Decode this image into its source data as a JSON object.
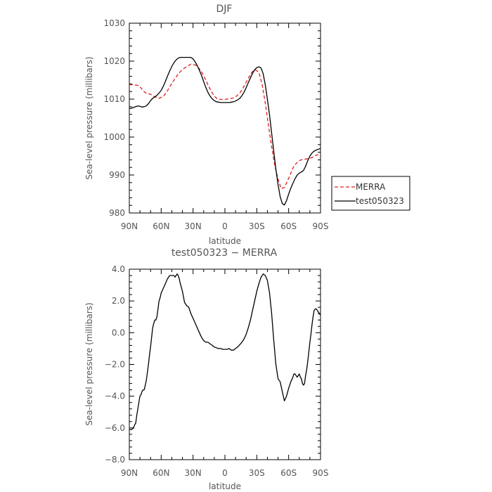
{
  "chart_data": [
    {
      "type": "line",
      "title": "DJF",
      "xlabel": "latitude",
      "ylabel": "Sea-level pressure (millibars)",
      "xlim": [
        90,
        -90
      ],
      "ylim": [
        980,
        1030
      ],
      "xticks": [
        90,
        60,
        30,
        0,
        -30,
        -60,
        -90
      ],
      "xtick_labels": [
        "90N",
        "60N",
        "30N",
        "0",
        "30S",
        "60S",
        "90S"
      ],
      "yticks": [
        980,
        990,
        1000,
        1010,
        1020,
        1030
      ],
      "ytick_labels": [
        "980",
        "990",
        "1000",
        "1010",
        "1020",
        "1030"
      ],
      "legend": {
        "placement": "right",
        "entries": [
          "MERRA",
          "test050323"
        ]
      },
      "series": [
        {
          "name": "MERRA",
          "color": "#e0201f",
          "dash": "dashed",
          "x": [
            90,
            86,
            84,
            82,
            80,
            77,
            74,
            70,
            66,
            62,
            58,
            55,
            52,
            48,
            44,
            40,
            36,
            32,
            28,
            25,
            22,
            19,
            16,
            13,
            10,
            7,
            4,
            1,
            -2,
            -5,
            -8,
            -11,
            -14,
            -17,
            -20,
            -23,
            -26,
            -29,
            -32,
            -35,
            -38,
            -41,
            -44,
            -47,
            -50,
            -53,
            -56,
            -59,
            -62,
            -64,
            -66,
            -68,
            -70,
            -72,
            -74,
            -76,
            -78,
            -80,
            -82,
            -84,
            -86,
            -88,
            -90
          ],
          "y": [
            1013.8,
            1013.8,
            1013.7,
            1013.6,
            1013.3,
            1012.2,
            1011.5,
            1011.3,
            1010.6,
            1010.2,
            1010.7,
            1011.8,
            1013.2,
            1015.0,
            1016.6,
            1017.8,
            1018.6,
            1019.2,
            1019.0,
            1018.3,
            1017.2,
            1015.6,
            1013.8,
            1012.1,
            1010.8,
            1010.0,
            1009.9,
            1009.9,
            1010.0,
            1010.1,
            1010.3,
            1010.8,
            1011.6,
            1012.9,
            1014.4,
            1016.0,
            1017.3,
            1017.7,
            1017.0,
            1013.9,
            1009.0,
            1003.0,
            997.5,
            992.5,
            988.9,
            986.4,
            986.7,
            988.5,
            990.4,
            991.8,
            992.7,
            993.3,
            993.8,
            994.0,
            994.1,
            994.2,
            994.3,
            994.4,
            994.6,
            995.0,
            995.2,
            995.4,
            995.5
          ]
        },
        {
          "name": "test050323",
          "color": "#000000",
          "dash": "solid",
          "x": [
            90,
            88,
            86,
            84,
            82,
            80,
            78,
            76,
            74,
            72,
            70,
            68,
            66,
            64,
            62,
            60,
            58,
            56,
            54,
            52,
            50,
            48,
            46,
            44,
            42,
            40,
            38,
            36,
            34,
            32,
            30,
            28,
            26,
            24,
            22,
            20,
            18,
            16,
            14,
            12,
            10,
            8,
            6,
            4,
            2,
            0,
            -2,
            -4,
            -6,
            -8,
            -10,
            -12,
            -14,
            -16,
            -18,
            -20,
            -22,
            -24,
            -26,
            -28,
            -30,
            -32,
            -34,
            -36,
            -38,
            -40,
            -42,
            -44,
            -46,
            -48,
            -50,
            -52,
            -54,
            -56,
            -58,
            -60,
            -62,
            -64,
            -66,
            -68,
            -70,
            -72,
            -74,
            -76,
            -78,
            -80,
            -82,
            -84,
            -86,
            -88,
            -90
          ],
          "y": [
            1007.5,
            1007.6,
            1007.8,
            1008.0,
            1008.2,
            1008.1,
            1007.9,
            1008.0,
            1008.2,
            1008.8,
            1009.6,
            1010.2,
            1010.6,
            1011.0,
            1011.6,
            1012.3,
            1013.4,
            1014.7,
            1016.1,
            1017.4,
            1018.6,
            1019.6,
            1020.3,
            1020.8,
            1021.0,
            1021.0,
            1021.0,
            1021.0,
            1021.0,
            1021.0,
            1020.6,
            1019.8,
            1018.8,
            1017.6,
            1016.2,
            1014.6,
            1013.1,
            1011.8,
            1010.8,
            1010.1,
            1009.6,
            1009.3,
            1009.2,
            1009.1,
            1009.1,
            1009.1,
            1009.1,
            1009.1,
            1009.2,
            1009.3,
            1009.5,
            1009.8,
            1010.2,
            1010.9,
            1011.8,
            1013.0,
            1014.3,
            1015.6,
            1016.8,
            1017.7,
            1018.3,
            1018.5,
            1018.2,
            1016.7,
            1013.8,
            1010.0,
            1005.8,
            1001.0,
            996.2,
            991.5,
            987.5,
            984.3,
            982.5,
            982.1,
            983.2,
            985.0,
            986.5,
            987.8,
            989.0,
            990.0,
            990.5,
            990.8,
            991.2,
            992.3,
            993.8,
            995.0,
            995.8,
            996.3,
            996.6,
            996.8,
            997.0
          ]
        }
      ]
    },
    {
      "type": "line",
      "title": "test050323 − MERRA",
      "xlabel": "latitude",
      "ylabel": "Sea-level pressure (millibars)",
      "xlim": [
        90,
        -90
      ],
      "ylim": [
        -8.0,
        4.0
      ],
      "xticks": [
        90,
        60,
        30,
        0,
        -30,
        -60,
        -90
      ],
      "xtick_labels": [
        "90N",
        "60N",
        "30N",
        "0",
        "30S",
        "60S",
        "90S"
      ],
      "yticks": [
        -8.0,
        -6.0,
        -4.0,
        -2.0,
        0.0,
        2.0,
        4.0
      ],
      "ytick_labels": [
        "−8.0",
        "−6.0",
        "−4.0",
        "−2.0",
        "0.0",
        "2.0",
        "4.0"
      ],
      "series": [
        {
          "color": "#000000",
          "dash": "solid",
          "x": [
            90,
            88,
            86,
            85,
            84,
            83,
            82,
            81,
            80,
            79,
            78,
            77,
            76,
            75,
            74,
            73,
            72,
            71,
            70,
            69,
            68,
            67,
            66,
            65,
            64,
            63,
            62,
            61,
            60,
            58,
            56,
            54,
            52,
            50,
            48,
            47,
            46,
            45,
            44,
            43,
            42,
            40,
            38,
            36,
            34,
            32,
            30,
            28,
            26,
            24,
            22,
            20,
            18,
            16,
            14,
            12,
            10,
            8,
            6,
            4,
            2,
            0,
            -2,
            -4,
            -6,
            -8,
            -10,
            -12,
            -14,
            -16,
            -18,
            -20,
            -22,
            -24,
            -26,
            -28,
            -30,
            -32,
            -34,
            -36,
            -38,
            -40,
            -42,
            -44,
            -46,
            -48,
            -50,
            -52,
            -54,
            -56,
            -58,
            -60,
            -62,
            -64,
            -65,
            -66,
            -67,
            -68,
            -69,
            -70,
            -71,
            -72,
            -73,
            -74,
            -75,
            -76,
            -77,
            -78,
            -79,
            -80,
            -81,
            -82,
            -83,
            -84,
            -85,
            -86,
            -87,
            -88,
            -89,
            -90
          ],
          "y": [
            -6.1,
            -6.1,
            -6.0,
            -5.8,
            -5.7,
            -5.2,
            -4.8,
            -4.4,
            -4.0,
            -3.9,
            -3.7,
            -3.6,
            -3.6,
            -3.3,
            -3.0,
            -2.5,
            -2.0,
            -1.4,
            -0.9,
            -0.3,
            0.3,
            0.6,
            0.8,
            0.8,
            1.0,
            1.5,
            2.0,
            2.2,
            2.5,
            2.8,
            3.1,
            3.4,
            3.6,
            3.6,
            3.6,
            3.5,
            3.6,
            3.7,
            3.6,
            3.4,
            3.1,
            2.6,
            1.9,
            1.7,
            1.6,
            1.2,
            0.9,
            0.6,
            0.3,
            0.0,
            -0.3,
            -0.5,
            -0.6,
            -0.6,
            -0.7,
            -0.8,
            -0.9,
            -0.95,
            -1.0,
            -1.0,
            -1.05,
            -1.05,
            -1.05,
            -1.0,
            -1.1,
            -1.1,
            -1.0,
            -0.9,
            -0.75,
            -0.6,
            -0.4,
            -0.1,
            0.3,
            0.8,
            1.4,
            2.0,
            2.6,
            3.1,
            3.5,
            3.7,
            3.6,
            3.3,
            2.5,
            1.2,
            -0.5,
            -2.0,
            -2.9,
            -3.1,
            -3.7,
            -4.3,
            -4.0,
            -3.5,
            -3.1,
            -2.8,
            -2.6,
            -2.6,
            -2.7,
            -2.8,
            -2.7,
            -2.6,
            -2.8,
            -2.9,
            -3.2,
            -3.3,
            -3.2,
            -2.7,
            -2.3,
            -1.8,
            -1.2,
            -0.6,
            -0.1,
            0.5,
            1.0,
            1.4,
            1.5,
            1.5,
            1.4,
            1.3,
            1.2,
            1.1
          ]
        }
      ]
    }
  ]
}
